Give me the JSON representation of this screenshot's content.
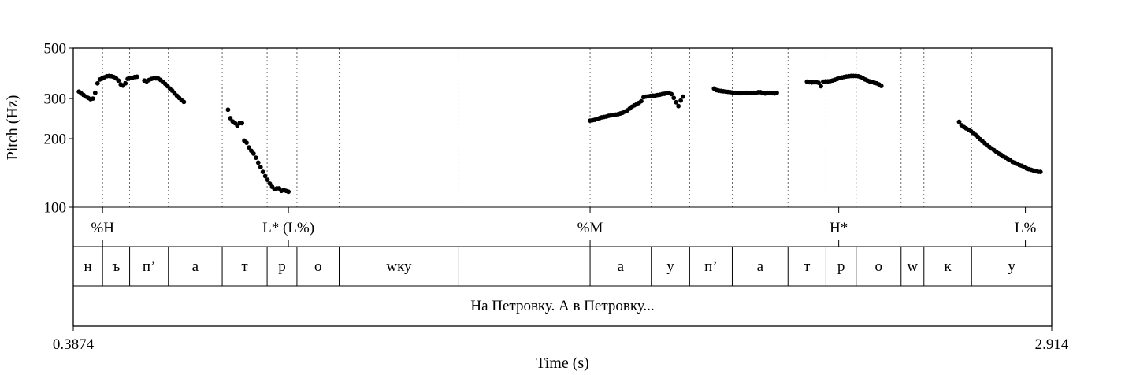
{
  "chart_data": {
    "type": "scatter",
    "ylabel": "Pitch (Hz)",
    "xlabel": "Time (s)",
    "xlim": [
      0.3874,
      2.914
    ],
    "ylim": [
      100,
      500
    ],
    "y_scale": "log",
    "yticks": [
      "500",
      "300",
      "200",
      "100"
    ],
    "xtick_labels": [
      "0.3874",
      "2.914"
    ],
    "series": [
      {
        "points": [
          [
            0.402,
            322
          ],
          [
            0.408,
            316
          ],
          [
            0.414,
            311
          ],
          [
            0.42,
            306
          ],
          [
            0.426,
            302
          ],
          [
            0.432,
            298
          ],
          [
            0.438,
            300
          ],
          [
            0.444,
            318
          ],
          [
            0.45,
            350
          ],
          [
            0.456,
            364
          ],
          [
            0.462,
            368
          ],
          [
            0.468,
            372
          ],
          [
            0.474,
            376
          ],
          [
            0.48,
            377
          ],
          [
            0.486,
            376
          ],
          [
            0.492,
            373
          ],
          [
            0.498,
            368
          ],
          [
            0.504,
            360
          ],
          [
            0.51,
            346
          ],
          [
            0.516,
            342
          ],
          [
            0.522,
            350
          ],
          [
            0.528,
            366
          ],
          [
            0.534,
            370
          ],
          [
            0.54,
            370
          ],
          [
            0.546,
            373
          ],
          [
            0.552,
            374
          ],
          [
            0.571,
            360
          ],
          [
            0.577,
            357
          ],
          [
            0.583,
            362
          ],
          [
            0.589,
            366
          ],
          [
            0.595,
            368
          ],
          [
            0.601,
            368
          ],
          [
            0.607,
            367
          ],
          [
            0.613,
            362
          ],
          [
            0.619,
            355
          ],
          [
            0.625,
            348
          ],
          [
            0.631,
            340
          ],
          [
            0.637,
            332
          ],
          [
            0.643,
            325
          ],
          [
            0.649,
            316
          ],
          [
            0.655,
            309
          ],
          [
            0.661,
            302
          ],
          [
            0.667,
            295
          ],
          [
            0.673,
            290
          ]
        ]
      },
      {
        "points": [
          [
            0.787,
            268
          ],
          [
            0.793,
            246
          ],
          [
            0.799,
            238
          ],
          [
            0.805,
            234
          ],
          [
            0.811,
            228
          ],
          [
            0.817,
            234
          ],
          [
            0.823,
            234
          ],
          [
            0.829,
            196
          ],
          [
            0.835,
            192
          ],
          [
            0.841,
            183
          ],
          [
            0.847,
            177
          ],
          [
            0.853,
            172
          ],
          [
            0.859,
            165
          ],
          [
            0.865,
            157
          ],
          [
            0.871,
            150
          ],
          [
            0.877,
            143
          ],
          [
            0.883,
            137
          ],
          [
            0.889,
            132
          ],
          [
            0.895,
            127
          ],
          [
            0.901,
            123
          ],
          [
            0.907,
            120
          ],
          [
            0.913,
            121
          ],
          [
            0.919,
            121
          ],
          [
            0.925,
            118
          ],
          [
            0.931,
            119
          ],
          [
            0.937,
            118
          ],
          [
            0.943,
            117
          ]
        ]
      },
      {
        "points": [
          [
            1.722,
            240
          ],
          [
            1.728,
            241
          ],
          [
            1.734,
            242
          ],
          [
            1.74,
            244
          ],
          [
            1.746,
            246
          ],
          [
            1.752,
            248
          ],
          [
            1.758,
            249
          ],
          [
            1.764,
            250
          ],
          [
            1.77,
            252
          ],
          [
            1.776,
            253
          ],
          [
            1.782,
            254
          ],
          [
            1.788,
            255
          ],
          [
            1.794,
            256
          ],
          [
            1.8,
            258
          ],
          [
            1.806,
            260
          ],
          [
            1.812,
            263
          ],
          [
            1.818,
            266
          ],
          [
            1.824,
            271
          ],
          [
            1.83,
            276
          ],
          [
            1.836,
            280
          ],
          [
            1.842,
            283
          ],
          [
            1.848,
            287
          ],
          [
            1.854,
            292
          ],
          [
            1.86,
            304
          ],
          [
            1.866,
            306
          ],
          [
            1.872,
            307
          ],
          [
            1.878,
            308
          ],
          [
            1.884,
            309
          ],
          [
            1.89,
            309
          ],
          [
            1.896,
            311
          ],
          [
            1.902,
            312
          ],
          [
            1.908,
            314
          ],
          [
            1.914,
            315
          ],
          [
            1.92,
            317
          ],
          [
            1.926,
            317
          ],
          [
            1.932,
            314
          ],
          [
            1.938,
            302
          ],
          [
            1.944,
            289
          ],
          [
            1.95,
            278
          ],
          [
            1.956,
            294
          ],
          [
            1.962,
            306
          ],
          [
            2.042,
            332
          ],
          [
            2.048,
            327
          ],
          [
            2.054,
            325
          ],
          [
            2.06,
            324
          ],
          [
            2.066,
            323
          ],
          [
            2.072,
            322
          ],
          [
            2.078,
            321
          ],
          [
            2.084,
            320
          ],
          [
            2.09,
            319
          ],
          [
            2.096,
            318
          ],
          [
            2.102,
            317
          ],
          [
            2.108,
            317
          ],
          [
            2.114,
            317
          ],
          [
            2.12,
            318
          ],
          [
            2.126,
            318
          ],
          [
            2.132,
            318
          ],
          [
            2.138,
            318
          ],
          [
            2.144,
            318
          ],
          [
            2.15,
            318
          ],
          [
            2.156,
            320
          ],
          [
            2.162,
            320
          ],
          [
            2.168,
            317
          ],
          [
            2.174,
            316
          ],
          [
            2.18,
            318
          ],
          [
            2.186,
            318
          ],
          [
            2.192,
            317
          ],
          [
            2.198,
            316
          ],
          [
            2.204,
            318
          ]
        ]
      },
      {
        "points": [
          [
            2.282,
            356
          ],
          [
            2.288,
            354
          ],
          [
            2.294,
            353
          ],
          [
            2.3,
            354
          ],
          [
            2.306,
            354
          ],
          [
            2.312,
            352
          ],
          [
            2.318,
            340
          ],
          [
            2.324,
            356
          ],
          [
            2.33,
            357
          ],
          [
            2.336,
            357
          ],
          [
            2.342,
            358
          ],
          [
            2.348,
            360
          ],
          [
            2.354,
            363
          ],
          [
            2.36,
            366
          ],
          [
            2.366,
            369
          ],
          [
            2.372,
            371
          ],
          [
            2.378,
            373
          ],
          [
            2.384,
            375
          ],
          [
            2.39,
            376
          ],
          [
            2.396,
            377
          ],
          [
            2.402,
            377
          ],
          [
            2.408,
            377
          ],
          [
            2.414,
            376
          ],
          [
            2.42,
            373
          ],
          [
            2.426,
            369
          ],
          [
            2.432,
            364
          ],
          [
            2.438,
            360
          ],
          [
            2.444,
            357
          ],
          [
            2.45,
            355
          ],
          [
            2.456,
            352
          ],
          [
            2.462,
            350
          ],
          [
            2.468,
            346
          ],
          [
            2.474,
            341
          ]
        ]
      },
      {
        "points": [
          [
            2.675,
            237
          ],
          [
            2.681,
            229
          ],
          [
            2.687,
            225
          ],
          [
            2.693,
            222
          ],
          [
            2.699,
            219
          ],
          [
            2.705,
            216
          ],
          [
            2.711,
            212
          ],
          [
            2.717,
            208
          ],
          [
            2.723,
            204
          ],
          [
            2.729,
            199
          ],
          [
            2.735,
            195
          ],
          [
            2.741,
            191
          ],
          [
            2.747,
            187
          ],
          [
            2.753,
            184
          ],
          [
            2.759,
            181
          ],
          [
            2.765,
            178
          ],
          [
            2.771,
            175
          ],
          [
            2.777,
            172
          ],
          [
            2.783,
            170
          ],
          [
            2.789,
            167
          ],
          [
            2.795,
            165
          ],
          [
            2.801,
            163
          ],
          [
            2.807,
            161
          ],
          [
            2.813,
            158
          ],
          [
            2.819,
            157
          ],
          [
            2.825,
            155
          ],
          [
            2.831,
            153
          ],
          [
            2.837,
            152
          ],
          [
            2.843,
            150
          ],
          [
            2.849,
            148
          ],
          [
            2.855,
            147
          ],
          [
            2.861,
            146
          ],
          [
            2.867,
            145
          ],
          [
            2.873,
            144
          ],
          [
            2.879,
            143
          ],
          [
            2.885,
            143
          ]
        ]
      }
    ],
    "tone_tier": [
      {
        "label": "%H",
        "time": 0.463
      },
      {
        "label": "L* (L%)",
        "time": 0.943
      },
      {
        "label": "%M",
        "time": 1.722
      },
      {
        "label": "H*",
        "time": 2.364
      },
      {
        "label": "L%",
        "time": 2.846
      }
    ],
    "segment_tier": [
      {
        "label": "н",
        "start": 0.3874,
        "end": 0.463
      },
      {
        "label": "ъ",
        "start": 0.463,
        "end": 0.533
      },
      {
        "label": "п’",
        "start": 0.533,
        "end": 0.633
      },
      {
        "label": "а",
        "start": 0.633,
        "end": 0.772
      },
      {
        "label": "т",
        "start": 0.772,
        "end": 0.888
      },
      {
        "label": "р",
        "start": 0.888,
        "end": 0.965
      },
      {
        "label": "о",
        "start": 0.965,
        "end": 1.074
      },
      {
        "label": "wку",
        "start": 1.074,
        "end": 1.383
      },
      {
        "label": "",
        "start": 1.383,
        "end": 1.722
      },
      {
        "label": "а",
        "start": 1.722,
        "end": 1.88
      },
      {
        "label": "у",
        "start": 1.88,
        "end": 1.979
      },
      {
        "label": "п’",
        "start": 1.979,
        "end": 2.089
      },
      {
        "label": "а",
        "start": 2.089,
        "end": 2.233
      },
      {
        "label": "т",
        "start": 2.233,
        "end": 2.331
      },
      {
        "label": "р",
        "start": 2.331,
        "end": 2.409
      },
      {
        "label": "о",
        "start": 2.409,
        "end": 2.525
      },
      {
        "label": "w",
        "start": 2.525,
        "end": 2.584
      },
      {
        "label": "к",
        "start": 2.584,
        "end": 2.707
      },
      {
        "label": "у",
        "start": 2.707,
        "end": 2.914
      }
    ],
    "sentence_tier": "На Петровку. А в Петровку...",
    "colors": {
      "points": "#000000",
      "lines": "#000000"
    }
  }
}
